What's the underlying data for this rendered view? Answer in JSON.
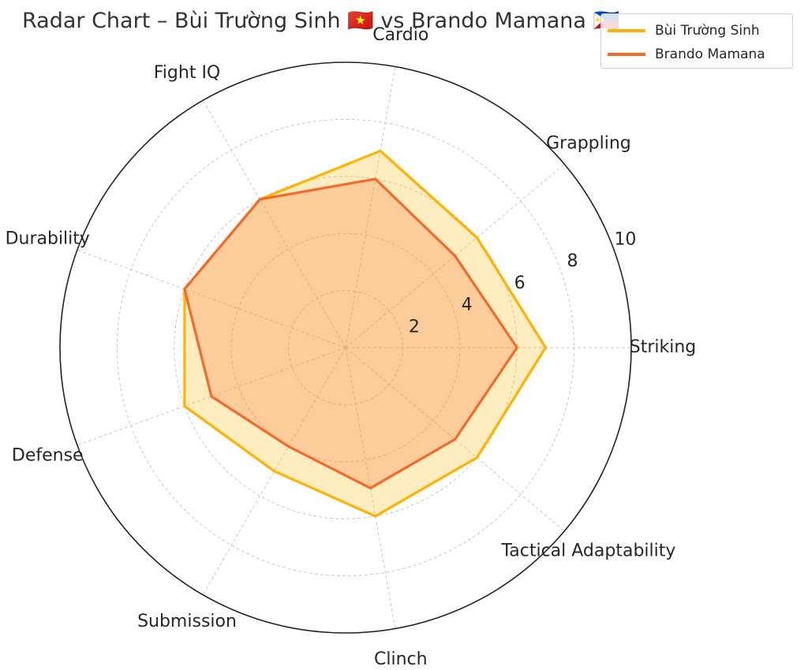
{
  "chart_data": {
    "type": "radar",
    "title": "Radar Chart – Bùi Trường Sinh 🇻🇳 vs Brando Mamana 🇵🇭",
    "axes": [
      "Striking",
      "Grappling",
      "Cardio",
      "Fight IQ",
      "Durability",
      "Defense",
      "Submission",
      "Clinch",
      "Tactical Adaptability"
    ],
    "r_range": [
      0,
      10
    ],
    "r_ticks": [
      "2",
      "4",
      "6",
      "8",
      "10"
    ],
    "grid": true,
    "legend_position": "top-right",
    "series": [
      {
        "name": "Bùi Trường Sinh",
        "color": "#FFB300",
        "values": [
          7,
          6,
          7,
          6,
          6,
          6,
          5,
          6,
          6
        ]
      },
      {
        "name": "Brando Mamana",
        "color": "#F26B2A",
        "values": [
          6,
          5,
          6,
          6,
          6,
          5,
          4,
          5,
          5
        ]
      }
    ]
  }
}
